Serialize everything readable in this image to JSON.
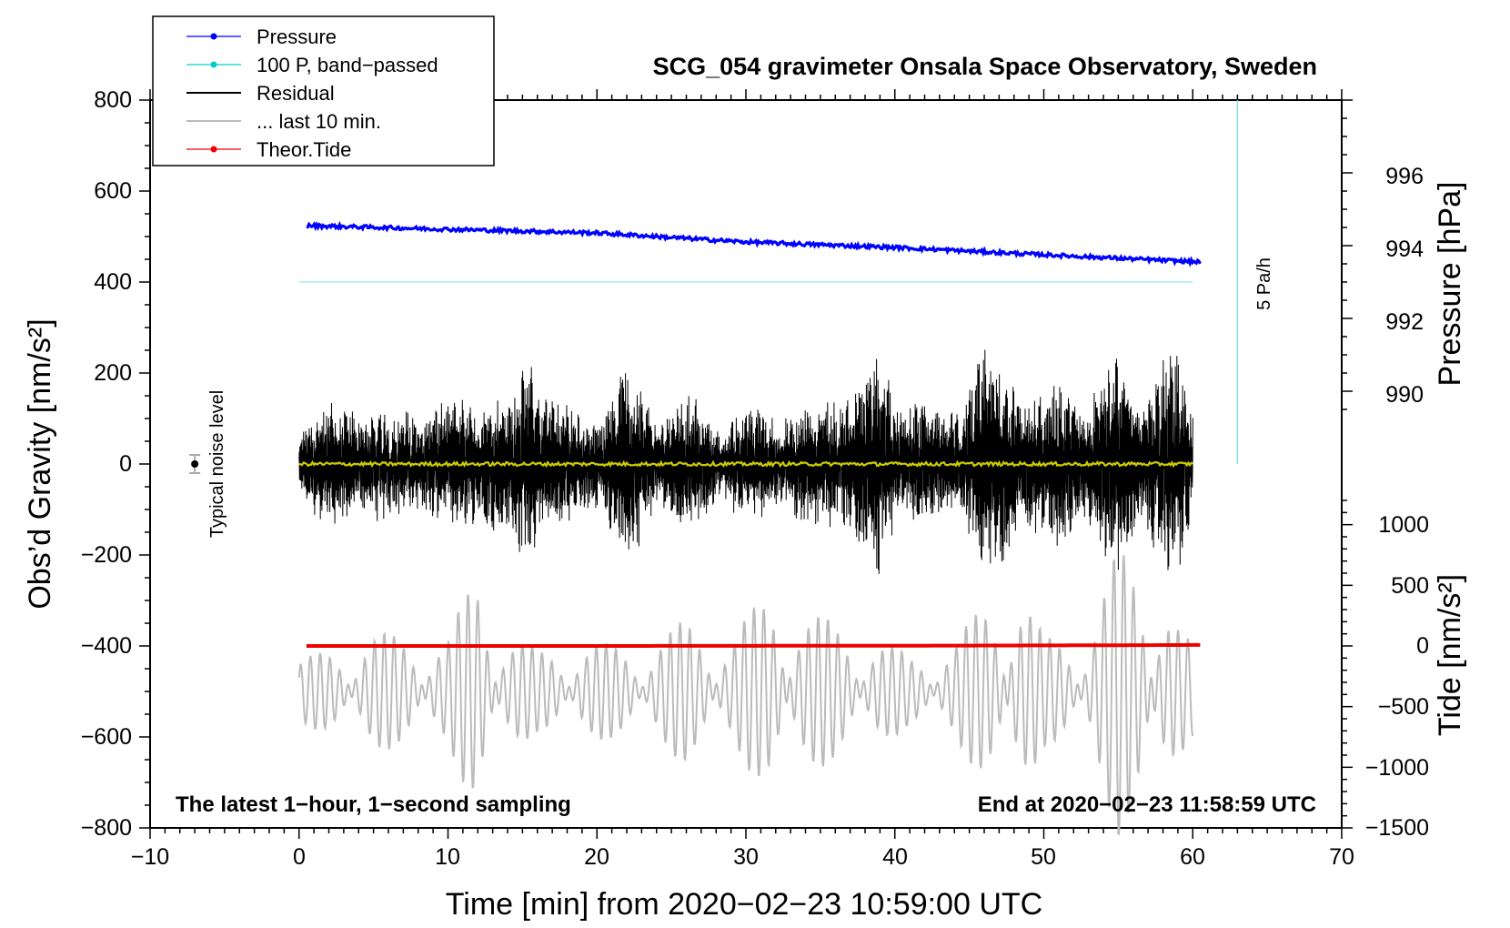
{
  "chart_data": {
    "type": "line",
    "title": "SCG_054 gravimeter Onsala Space Observatory, Sweden",
    "xlabel": "Time [min] from 2020−02−23 10:59:00 UTC",
    "ylabel": "Obs’d Gravity [nm/s²]",
    "ylabel_right_top": "Pressure [hPa]",
    "ylabel_right_bottom": "Tide [nm/s²]",
    "xlim": [
      -10,
      70
    ],
    "ylim": [
      -800,
      800
    ],
    "x_ticks": [
      "−10",
      "0",
      "10",
      "20",
      "30",
      "40",
      "50",
      "60",
      "70"
    ],
    "y_ticks": [
      "−800",
      "−600",
      "−400",
      "−200",
      "0",
      "200",
      "400",
      "600",
      "800"
    ],
    "pressure_ticks": [
      "990",
      "992",
      "994",
      "996"
    ],
    "tide_ticks": [
      "−1500",
      "−1000",
      "−500",
      "0",
      "500",
      "1000"
    ],
    "pressure_tick_values": [
      990,
      992,
      994,
      996
    ],
    "tide_tick_values": [
      -1500,
      -1000,
      -500,
      0,
      500,
      1000
    ],
    "legend": {
      "placement": "top-left",
      "entries": [
        {
          "name": "Pressure",
          "color": "#0000ff",
          "marker": "dot"
        },
        {
          "name": "100 P, band−passed",
          "color": "#00cccc",
          "marker": "dot"
        },
        {
          "name": "Residual",
          "color": "#000000",
          "marker": "none"
        },
        {
          "name": "... last 10 min.",
          "color": "#bbbbbb",
          "marker": "none"
        },
        {
          "name": "Theor.Tide",
          "color": "#ee0000",
          "marker": "dot"
        }
      ]
    },
    "series": [
      {
        "name": "Pressure",
        "axis": "pressure_hPa",
        "x": [
          0.5,
          10,
          20,
          30,
          40,
          50,
          60.5
        ],
        "values": [
          994.55,
          994.45,
          994.35,
          994.1,
          993.95,
          993.75,
          993.55
        ],
        "color": "#0000ff"
      },
      {
        "name": "100 P, band−passed",
        "axis": "gravity",
        "x": [
          0,
          60
        ],
        "values": [
          400,
          400
        ],
        "color": "#aaeeee"
      },
      {
        "name": "Residual",
        "axis": "gravity",
        "x_range": [
          0,
          60
        ],
        "envelope": [
          [
            0,
            110
          ],
          [
            2,
            140
          ],
          [
            4,
            170
          ],
          [
            6,
            120
          ],
          [
            8,
            160
          ],
          [
            10,
            140
          ],
          [
            12,
            190
          ],
          [
            14,
            150
          ],
          [
            15.5,
            300
          ],
          [
            17,
            170
          ],
          [
            19,
            120
          ],
          [
            21,
            180
          ],
          [
            22,
            240
          ],
          [
            24,
            140
          ],
          [
            26,
            160
          ],
          [
            28,
            120
          ],
          [
            30,
            130
          ],
          [
            32,
            140
          ],
          [
            35,
            140
          ],
          [
            36,
            200
          ],
          [
            38,
            190
          ],
          [
            39,
            280
          ],
          [
            41,
            160
          ],
          [
            43,
            130
          ],
          [
            46,
            260
          ],
          [
            48,
            240
          ],
          [
            50,
            150
          ],
          [
            51.5,
            220
          ],
          [
            53,
            170
          ],
          [
            55,
            250
          ],
          [
            57,
            200
          ],
          [
            59,
            270
          ],
          [
            60,
            150
          ]
        ],
        "color": "#000000"
      },
      {
        "name": "Smoothed residual",
        "axis": "gravity",
        "x": [
          0,
          60
        ],
        "values": [
          0,
          0
        ],
        "color": "#cccc00"
      },
      {
        "name": "... last 10 min.",
        "axis": "gravity",
        "x_range": [
          0,
          60
        ],
        "offset": -500,
        "envelope": [
          [
            0,
            70
          ],
          [
            5,
            130
          ],
          [
            10,
            120
          ],
          [
            12,
            280
          ],
          [
            14,
            140
          ],
          [
            16,
            90
          ],
          [
            19,
            110
          ],
          [
            23,
            100
          ],
          [
            26,
            160
          ],
          [
            29,
            130
          ],
          [
            32,
            240
          ],
          [
            34,
            180
          ],
          [
            38,
            130
          ],
          [
            41,
            80
          ],
          [
            44,
            110
          ],
          [
            46,
            200
          ],
          [
            48,
            280
          ],
          [
            50,
            120
          ],
          [
            53,
            140
          ],
          [
            55,
            320
          ],
          [
            57,
            320
          ],
          [
            59,
            150
          ],
          [
            60,
            100
          ]
        ],
        "color": "#bbbbbb"
      },
      {
        "name": "Theor.Tide",
        "axis": "tide_nm_s2",
        "x": [
          0,
          20,
          40,
          52,
          60
        ],
        "values": [
          0,
          0,
          2,
          5,
          8
        ],
        "color": "#ee0000"
      },
      {
        "name": "5 Pa/h",
        "axis": "gravity",
        "x": [
          63,
          63
        ],
        "values": [
          0,
          800
        ],
        "color": "#88dddd"
      }
    ],
    "annotations": [
      {
        "text": "5 Pa/h",
        "x": 64.5,
        "y": 380
      },
      {
        "text": "Typical noise level",
        "x": -5.5,
        "y": -180
      },
      {
        "text": "The latest 1−hour, 1−second sampling"
      },
      {
        "text": "End at 2020−02−23 11:58:59 UTC"
      }
    ],
    "noise_level": {
      "x": -7,
      "y": 0,
      "error": 20
    }
  }
}
